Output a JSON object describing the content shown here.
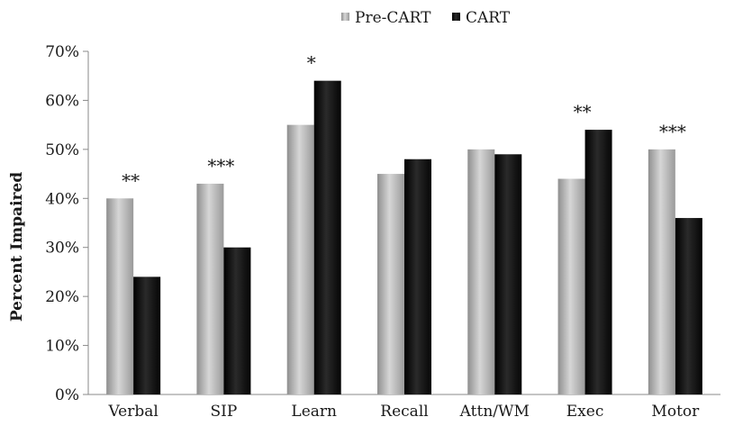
{
  "chart_data": {
    "type": "bar",
    "title": "",
    "xlabel": "",
    "ylabel": "Percent Impaired",
    "ylim": [
      0,
      70
    ],
    "yticks": [
      0,
      10,
      20,
      30,
      40,
      50,
      60,
      70
    ],
    "ytick_labels": [
      "0%",
      "10%",
      "20%",
      "30%",
      "40%",
      "50%",
      "60%",
      "70%"
    ],
    "grid": false,
    "legend_position": "top-center",
    "categories": [
      "Verbal",
      "SIP",
      "Learn",
      "Recall",
      "Attn/WM",
      "Exec",
      "Motor"
    ],
    "series": [
      {
        "name": "Pre-CART",
        "color": "#b4b4b4",
        "values": [
          40,
          43,
          55,
          45,
          50,
          44,
          50
        ]
      },
      {
        "name": "CART",
        "color": "#0d0d0d",
        "values": [
          24,
          30,
          64,
          48,
          49,
          54,
          36
        ]
      }
    ],
    "annotations": [
      "**",
      "***",
      "*",
      "",
      "",
      "**",
      "***"
    ]
  }
}
